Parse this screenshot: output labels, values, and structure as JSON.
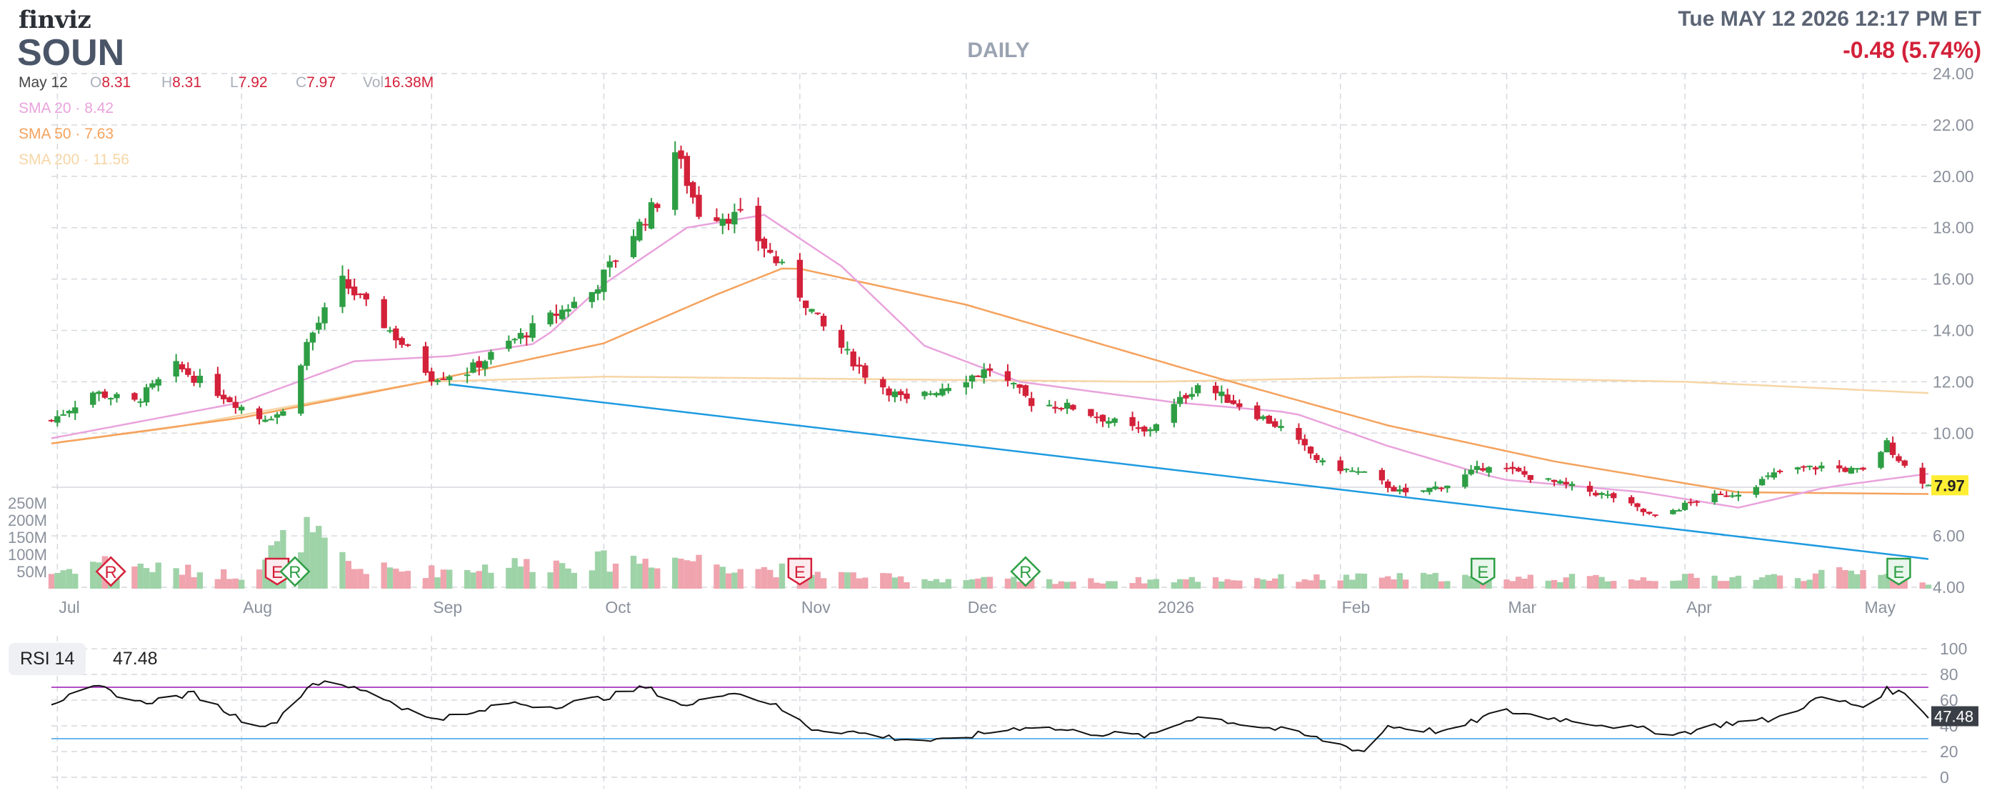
{
  "header": {
    "brand": "finviz",
    "ticker": "SOUN",
    "period": "DAILY",
    "datetime": "Tue MAY 12 2026 12:17 PM ET",
    "change": "-0.48 (5.74%)"
  },
  "ohlc": {
    "date": "May 12",
    "open_label": "O",
    "open": "8.31",
    "high_label": "H",
    "high": "8.31",
    "low_label": "L",
    "low": "7.92",
    "close_label": "C",
    "close": "7.97",
    "vol_label": "Vol",
    "vol": "16.38M"
  },
  "sma": [
    {
      "label": "SMA 20",
      "value": "8.42",
      "color": "#e9a3dc"
    },
    {
      "label": "SMA 50",
      "value": "7.63",
      "color": "#f5a25d"
    },
    {
      "label": "SMA 200",
      "value": "11.56",
      "color": "#f6d6a6"
    }
  ],
  "rsi": {
    "label": "RSI 14",
    "value": "47.48"
  },
  "colors": {
    "up": "#2e9e44",
    "down": "#d3213a",
    "trendline": "#1e9ae0",
    "rsi_line": "#111111",
    "overbought": "#b34dc6",
    "oversold": "#6ab7e9"
  },
  "chart_data": [
    {
      "type": "candlestick",
      "title": "SOUN DAILY",
      "x_tick_labels": [
        "Jul",
        "Aug",
        "Sep",
        "Oct",
        "Nov",
        "Dec",
        "2026",
        "Feb",
        "Mar",
        "Apr",
        "May"
      ],
      "y_ticks": [
        4,
        6,
        10,
        12,
        14,
        16,
        18,
        20,
        22,
        24
      ],
      "y_tick_labels": [
        "4.00",
        "6.00",
        "10.00",
        "12.00",
        "14.00",
        "16.00",
        "18.00",
        "20.00",
        "22.00",
        "24.00"
      ],
      "ylim": [
        4,
        24
      ],
      "last_price_label": "7.97",
      "grid": true,
      "price_anchors": [
        [
          "2025-06-30",
          10.5
        ],
        [
          "2025-07-07",
          11.6
        ],
        [
          "2025-07-14",
          11.2
        ],
        [
          "2025-07-21",
          12.6
        ],
        [
          "2025-07-28",
          11.6
        ],
        [
          "2025-08-04",
          10.6
        ],
        [
          "2025-08-08",
          10.8
        ],
        [
          "2025-08-12",
          13.5
        ],
        [
          "2025-08-18",
          15.9
        ],
        [
          "2025-08-26",
          14.0
        ],
        [
          "2025-09-02",
          12.2
        ],
        [
          "2025-09-08",
          12.4
        ],
        [
          "2025-09-15",
          13.5
        ],
        [
          "2025-09-22",
          14.5
        ],
        [
          "2025-09-29",
          15.5
        ],
        [
          "2025-10-06",
          17.8
        ],
        [
          "2025-10-10",
          19.0
        ],
        [
          "2025-10-13",
          21.0
        ],
        [
          "2025-10-17",
          18.6
        ],
        [
          "2025-10-24",
          18.4
        ],
        [
          "2025-10-31",
          16.4
        ],
        [
          "2025-11-07",
          14.1
        ],
        [
          "2025-11-14",
          12.3
        ],
        [
          "2025-11-21",
          11.2
        ],
        [
          "2025-11-28",
          11.9
        ],
        [
          "2025-12-05",
          12.5
        ],
        [
          "2025-12-12",
          11.2
        ],
        [
          "2025-12-19",
          11.0
        ],
        [
          "2025-12-31",
          10.0
        ],
        [
          "2026-01-09",
          11.9
        ],
        [
          "2026-01-16",
          11.1
        ],
        [
          "2026-01-23",
          10.2
        ],
        [
          "2026-01-30",
          8.8
        ],
        [
          "2026-02-06",
          8.4
        ],
        [
          "2026-02-13",
          7.6
        ],
        [
          "2026-02-20",
          8.0
        ],
        [
          "2026-02-27",
          8.8
        ],
        [
          "2026-03-06",
          8.3
        ],
        [
          "2026-03-13",
          7.9
        ],
        [
          "2026-03-20",
          7.5
        ],
        [
          "2026-03-27",
          6.7
        ],
        [
          "2026-04-03",
          7.4
        ],
        [
          "2026-04-10",
          7.7
        ],
        [
          "2026-04-17",
          8.5
        ],
        [
          "2026-04-24",
          8.7
        ],
        [
          "2026-05-01",
          8.5
        ],
        [
          "2026-05-05",
          9.6
        ],
        [
          "2026-05-08",
          8.7
        ],
        [
          "2026-05-12",
          7.97
        ]
      ],
      "sma20": [
        [
          "2025-06-30",
          9.8
        ],
        [
          "2025-08-01",
          11.2
        ],
        [
          "2025-08-20",
          12.8
        ],
        [
          "2025-09-05",
          13.0
        ],
        [
          "2025-09-20",
          13.5
        ],
        [
          "2025-10-01",
          15.8
        ],
        [
          "2025-10-15",
          18.0
        ],
        [
          "2025-10-28",
          18.5
        ],
        [
          "2025-11-10",
          16.5
        ],
        [
          "2025-11-24",
          13.4
        ],
        [
          "2025-12-10",
          12.0
        ],
        [
          "2026-01-05",
          11.2
        ],
        [
          "2026-01-25",
          10.8
        ],
        [
          "2026-02-10",
          9.5
        ],
        [
          "2026-03-01",
          8.2
        ],
        [
          "2026-03-25",
          7.7
        ],
        [
          "2026-04-10",
          7.1
        ],
        [
          "2026-04-25",
          7.9
        ],
        [
          "2026-05-12",
          8.42
        ]
      ],
      "sma50": [
        [
          "2025-06-30",
          9.6
        ],
        [
          "2025-08-01",
          10.6
        ],
        [
          "2025-09-01",
          12.0
        ],
        [
          "2025-10-01",
          13.5
        ],
        [
          "2025-10-20",
          15.4
        ],
        [
          "2025-11-01",
          16.5
        ],
        [
          "2025-12-01",
          15.0
        ],
        [
          "2026-01-10",
          12.3
        ],
        [
          "2026-02-10",
          10.3
        ],
        [
          "2026-03-10",
          8.9
        ],
        [
          "2026-04-10",
          7.7
        ],
        [
          "2026-05-12",
          7.63
        ]
      ],
      "sma200": [
        [
          "2025-06-30",
          9.6
        ],
        [
          "2025-07-20",
          10.2
        ],
        [
          "2025-09-01",
          12.0
        ],
        [
          "2025-10-01",
          12.2
        ],
        [
          "2026-01-01",
          12.0
        ],
        [
          "2026-02-15",
          12.2
        ],
        [
          "2026-04-01",
          12.0
        ],
        [
          "2026-05-12",
          11.56
        ]
      ],
      "trendline": [
        [
          "2025-09-05",
          11.9
        ],
        [
          "2026-05-12",
          5.1
        ]
      ],
      "event_markers": [
        {
          "date": "2025-07-10",
          "label": "R",
          "kind": "diamond",
          "color": "#d3213a"
        },
        {
          "date": "2025-08-07",
          "label": "E",
          "kind": "badge",
          "color": "#d3213a"
        },
        {
          "date": "2025-08-10",
          "label": "R",
          "kind": "diamond",
          "color": "#2e9e44"
        },
        {
          "date": "2025-11-03",
          "label": "E",
          "kind": "badge",
          "color": "#d3213a"
        },
        {
          "date": "2025-12-11",
          "label": "R",
          "kind": "diamond",
          "color": "#2e9e44"
        },
        {
          "date": "2026-02-26",
          "label": "E",
          "kind": "badge",
          "color": "#2e9e44"
        },
        {
          "date": "2026-05-07",
          "label": "E",
          "kind": "badge",
          "color": "#2e9e44"
        }
      ]
    },
    {
      "type": "bar",
      "title": "Volume",
      "y_tick_labels": [
        "50M",
        "100M",
        "150M",
        "200M",
        "250M"
      ],
      "y_ticks": [
        50,
        100,
        150,
        200,
        250
      ],
      "y_unit": "M",
      "ylim": [
        0,
        300
      ],
      "volume_anchors": [
        [
          "2025-06-30",
          45
        ],
        [
          "2025-07-08",
          80
        ],
        [
          "2025-07-20",
          55
        ],
        [
          "2025-08-01",
          40
        ],
        [
          "2025-08-11",
          170
        ],
        [
          "2025-08-20",
          60
        ],
        [
          "2025-09-01",
          50
        ],
        [
          "2025-09-15",
          70
        ],
        [
          "2025-10-01",
          80
        ],
        [
          "2025-10-14",
          90
        ],
        [
          "2025-10-30",
          55
        ],
        [
          "2025-11-20",
          30
        ],
        [
          "2025-12-20",
          22
        ],
        [
          "2026-01-20",
          30
        ],
        [
          "2026-02-20",
          35
        ],
        [
          "2026-03-20",
          30
        ],
        [
          "2026-04-20",
          35
        ],
        [
          "2026-05-07",
          60
        ],
        [
          "2026-05-12",
          16.38
        ]
      ]
    },
    {
      "type": "line",
      "title": "RSI 14",
      "y_ticks": [
        0,
        20,
        40,
        60,
        80,
        100
      ],
      "y_tick_labels": [
        "0",
        "20",
        "40",
        "60",
        "80",
        "100"
      ],
      "ylim": [
        0,
        100
      ],
      "overbought": 70,
      "oversold": 30,
      "last_label": "47.48",
      "rsi_anchors": [
        [
          "2025-06-30",
          58
        ],
        [
          "2025-07-08",
          70
        ],
        [
          "2025-07-15",
          58
        ],
        [
          "2025-07-24",
          65
        ],
        [
          "2025-08-01",
          45
        ],
        [
          "2025-08-06",
          40
        ],
        [
          "2025-08-13",
          74
        ],
        [
          "2025-08-22",
          68
        ],
        [
          "2025-09-01",
          46
        ],
        [
          "2025-09-08",
          48
        ],
        [
          "2025-09-15",
          58
        ],
        [
          "2025-09-22",
          55
        ],
        [
          "2025-10-01",
          62
        ],
        [
          "2025-10-08",
          70
        ],
        [
          "2025-10-15",
          55
        ],
        [
          "2025-10-22",
          67
        ],
        [
          "2025-10-29",
          58
        ],
        [
          "2025-11-05",
          38
        ],
        [
          "2025-11-12",
          35
        ],
        [
          "2025-11-20",
          30
        ],
        [
          "2025-11-27",
          28
        ],
        [
          "2025-12-05",
          35
        ],
        [
          "2025-12-12",
          40
        ],
        [
          "2025-12-20",
          35
        ],
        [
          "2026-01-01",
          32
        ],
        [
          "2026-01-09",
          48
        ],
        [
          "2026-01-16",
          42
        ],
        [
          "2026-01-24",
          36
        ],
        [
          "2026-01-31",
          28
        ],
        [
          "2026-02-06",
          20
        ],
        [
          "2026-02-10",
          40
        ],
        [
          "2026-02-20",
          35
        ],
        [
          "2026-03-01",
          52
        ],
        [
          "2026-03-10",
          46
        ],
        [
          "2026-03-20",
          40
        ],
        [
          "2026-03-31",
          34
        ],
        [
          "2026-04-08",
          42
        ],
        [
          "2026-04-16",
          45
        ],
        [
          "2026-04-24",
          62
        ],
        [
          "2026-05-01",
          55
        ],
        [
          "2026-05-05",
          68
        ],
        [
          "2026-05-09",
          64
        ],
        [
          "2026-05-12",
          47.48
        ]
      ]
    }
  ]
}
